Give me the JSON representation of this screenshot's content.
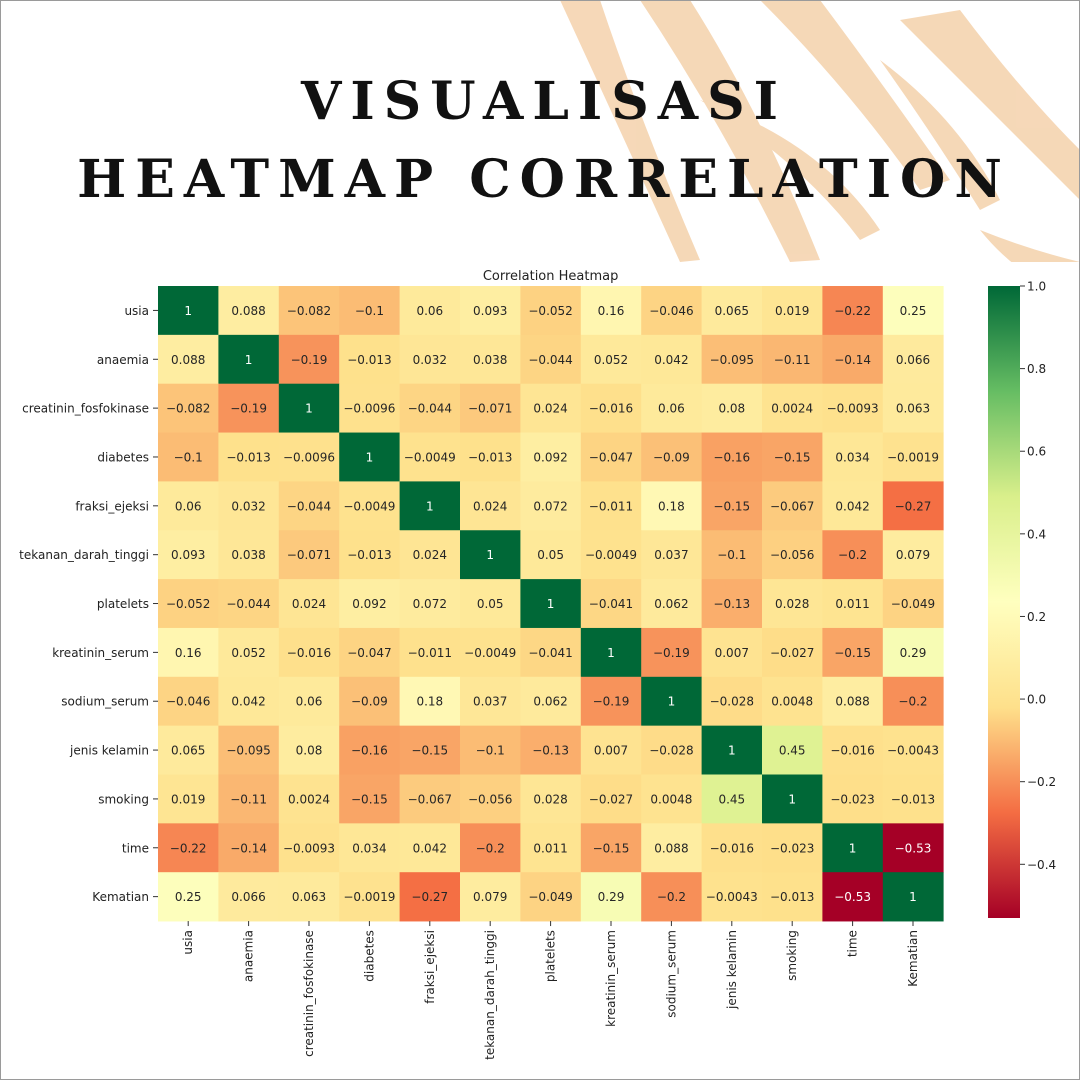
{
  "page": {
    "title_line1": "VISUALISASI",
    "title_line2": "HEATMAP CORRELATION"
  },
  "colors": {
    "background_palm": "#f5d6b4",
    "colormap": [
      "#a50026",
      "#f46d43",
      "#fee08b",
      "#ffffbf",
      "#d9ef8b",
      "#66bd63",
      "#006837"
    ]
  },
  "chart_data": {
    "type": "heatmap",
    "title": "Correlation Heatmap",
    "labels": [
      "usia",
      "anaemia",
      "creatinin_fosfokinase",
      "diabetes",
      "fraksi_ejeksi",
      "tekanan_darah_tinggi",
      "platelets",
      "kreatinin_serum",
      "sodium_serum",
      "jenis kelamin",
      "smoking",
      "time",
      "Kematian"
    ],
    "values": [
      [
        1,
        0.088,
        -0.082,
        -0.1,
        0.06,
        0.093,
        -0.052,
        0.16,
        -0.046,
        0.065,
        0.019,
        -0.22,
        0.25
      ],
      [
        0.088,
        1,
        -0.19,
        -0.013,
        0.032,
        0.038,
        -0.044,
        0.052,
        0.042,
        -0.095,
        -0.11,
        -0.14,
        0.066
      ],
      [
        -0.082,
        -0.19,
        1,
        -0.0096,
        -0.044,
        -0.071,
        0.024,
        -0.016,
        0.06,
        0.08,
        0.0024,
        -0.0093,
        0.063
      ],
      [
        -0.1,
        -0.013,
        -0.0096,
        1,
        -0.0049,
        -0.013,
        0.092,
        -0.047,
        -0.09,
        -0.16,
        -0.15,
        0.034,
        -0.0019
      ],
      [
        0.06,
        0.032,
        -0.044,
        -0.0049,
        1,
        0.024,
        0.072,
        -0.011,
        0.18,
        -0.15,
        -0.067,
        0.042,
        -0.27
      ],
      [
        0.093,
        0.038,
        -0.071,
        -0.013,
        0.024,
        1,
        0.05,
        -0.0049,
        0.037,
        -0.1,
        -0.056,
        -0.2,
        0.079
      ],
      [
        -0.052,
        -0.044,
        0.024,
        0.092,
        0.072,
        0.05,
        1,
        -0.041,
        0.062,
        -0.13,
        0.028,
        0.011,
        -0.049
      ],
      [
        0.16,
        0.052,
        -0.016,
        -0.047,
        -0.011,
        -0.0049,
        -0.041,
        1,
        -0.19,
        0.007,
        -0.027,
        -0.15,
        0.29
      ],
      [
        -0.046,
        0.042,
        0.06,
        -0.09,
        0.18,
        0.037,
        0.062,
        -0.19,
        1,
        -0.028,
        0.0048,
        0.088,
        -0.2
      ],
      [
        0.065,
        -0.095,
        0.08,
        -0.16,
        -0.15,
        -0.1,
        -0.13,
        0.007,
        -0.028,
        1,
        0.45,
        -0.016,
        -0.0043
      ],
      [
        0.019,
        -0.11,
        0.0024,
        -0.15,
        -0.067,
        -0.056,
        0.028,
        -0.027,
        0.0048,
        0.45,
        1,
        -0.023,
        -0.013
      ],
      [
        -0.22,
        -0.14,
        -0.0093,
        0.034,
        0.042,
        -0.2,
        0.011,
        -0.15,
        0.088,
        -0.016,
        -0.023,
        1,
        -0.53
      ],
      [
        0.25,
        0.066,
        0.063,
        -0.0019,
        -0.27,
        0.079,
        -0.049,
        0.29,
        -0.2,
        -0.0043,
        -0.013,
        -0.53,
        1
      ]
    ],
    "vmin": -0.53,
    "vmax": 1.0,
    "colorbar_ticks": [
      1.0,
      0.8,
      0.6,
      0.4,
      0.2,
      0.0,
      -0.2,
      -0.4
    ],
    "colorbar_tick_labels": [
      "1.0",
      "0.8",
      "0.6",
      "0.4",
      "0.2",
      "0.0",
      "−0.2",
      "−0.4"
    ],
    "colormap_name": "RdYlGn",
    "annotated": true,
    "grid": false
  }
}
